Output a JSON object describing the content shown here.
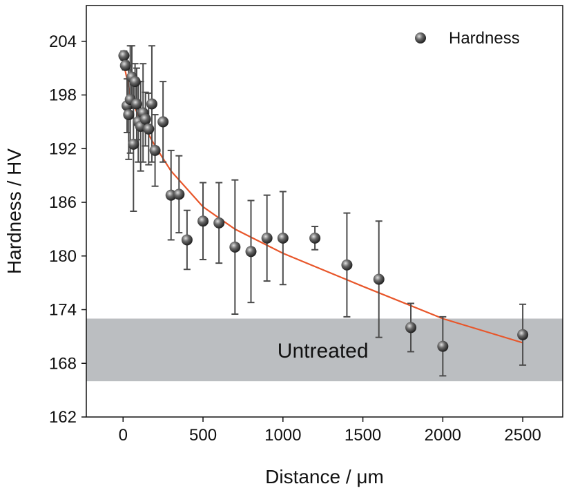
{
  "chart_data": {
    "type": "scatter",
    "title": "",
    "xlabel": "Distance / μm",
    "ylabel": "Hardness / HV",
    "xlim": [
      -230,
      2750
    ],
    "ylim": [
      162,
      208
    ],
    "xticks": [
      0,
      500,
      1000,
      1500,
      2000,
      2500
    ],
    "xtick_labels": [
      "0",
      "500",
      "1000",
      "1500",
      "2000",
      "2500"
    ],
    "yticks": [
      162,
      168,
      174,
      180,
      186,
      192,
      198,
      204
    ],
    "ytick_labels": [
      "162",
      "168",
      "174",
      "180",
      "186",
      "192",
      "198",
      "204"
    ],
    "grid": false,
    "legend_position": "top-right",
    "series": [
      {
        "name": "Hardness",
        "marker": "sphere",
        "color": "#555555",
        "points": [
          {
            "x": 5,
            "y": 202.4,
            "err": 0.5
          },
          {
            "x": 15,
            "y": 201.3,
            "err": 0.5
          },
          {
            "x": 25,
            "y": 196.8,
            "err": 3.0
          },
          {
            "x": 35,
            "y": 195.8,
            "err": 5.0
          },
          {
            "x": 45,
            "y": 197.5,
            "err": 6.0
          },
          {
            "x": 55,
            "y": 200.0,
            "err": 3.5
          },
          {
            "x": 65,
            "y": 192.5,
            "err": 7.5
          },
          {
            "x": 75,
            "y": 199.5,
            "err": 2.0
          },
          {
            "x": 85,
            "y": 197.0,
            "err": 4.0
          },
          {
            "x": 95,
            "y": 195.0,
            "err": 4.5
          },
          {
            "x": 110,
            "y": 194.5,
            "err": 5.0
          },
          {
            "x": 125,
            "y": 196.0,
            "err": 5.5
          },
          {
            "x": 140,
            "y": 195.3,
            "err": 3.0
          },
          {
            "x": 160,
            "y": 194.2,
            "err": 4.0
          },
          {
            "x": 180,
            "y": 197.0,
            "err": 6.5
          },
          {
            "x": 200,
            "y": 191.8,
            "err": 4.0
          },
          {
            "x": 250,
            "y": 195.0,
            "err": 4.5
          },
          {
            "x": 300,
            "y": 186.8,
            "err": 5.0
          },
          {
            "x": 350,
            "y": 186.9,
            "err": 4.3
          },
          {
            "x": 400,
            "y": 181.8,
            "err": 3.3
          },
          {
            "x": 500,
            "y": 183.9,
            "err": 4.3
          },
          {
            "x": 600,
            "y": 183.7,
            "err": 4.5
          },
          {
            "x": 700,
            "y": 181.0,
            "err": 7.5
          },
          {
            "x": 800,
            "y": 180.5,
            "err": 5.7
          },
          {
            "x": 900,
            "y": 182.0,
            "err": 4.8
          },
          {
            "x": 1000,
            "y": 182.0,
            "err": 5.2
          },
          {
            "x": 1200,
            "y": 182.0,
            "err": 1.3
          },
          {
            "x": 1400,
            "y": 179.0,
            "err": 5.8
          },
          {
            "x": 1600,
            "y": 177.4,
            "err": 6.5
          },
          {
            "x": 1800,
            "y": 172.0,
            "err": 2.7
          },
          {
            "x": 2000,
            "y": 169.9,
            "err": 3.3
          },
          {
            "x": 2500,
            "y": 171.2,
            "err": 3.4
          }
        ]
      },
      {
        "type": "line",
        "color": "#e8562a",
        "points": [
          {
            "x": 10,
            "y": 201.0
          },
          {
            "x": 50,
            "y": 197.6
          },
          {
            "x": 100,
            "y": 195.5
          },
          {
            "x": 200,
            "y": 192.3
          },
          {
            "x": 300,
            "y": 189.5
          },
          {
            "x": 500,
            "y": 185.5
          },
          {
            "x": 700,
            "y": 183.0
          },
          {
            "x": 1000,
            "y": 180.3
          },
          {
            "x": 1500,
            "y": 176.6
          },
          {
            "x": 2000,
            "y": 173.0
          },
          {
            "x": 2500,
            "y": 170.3
          }
        ]
      }
    ],
    "band": {
      "label": "Untreated",
      "y_range": [
        166.0,
        173.0
      ],
      "color": "#bbbec1"
    }
  }
}
